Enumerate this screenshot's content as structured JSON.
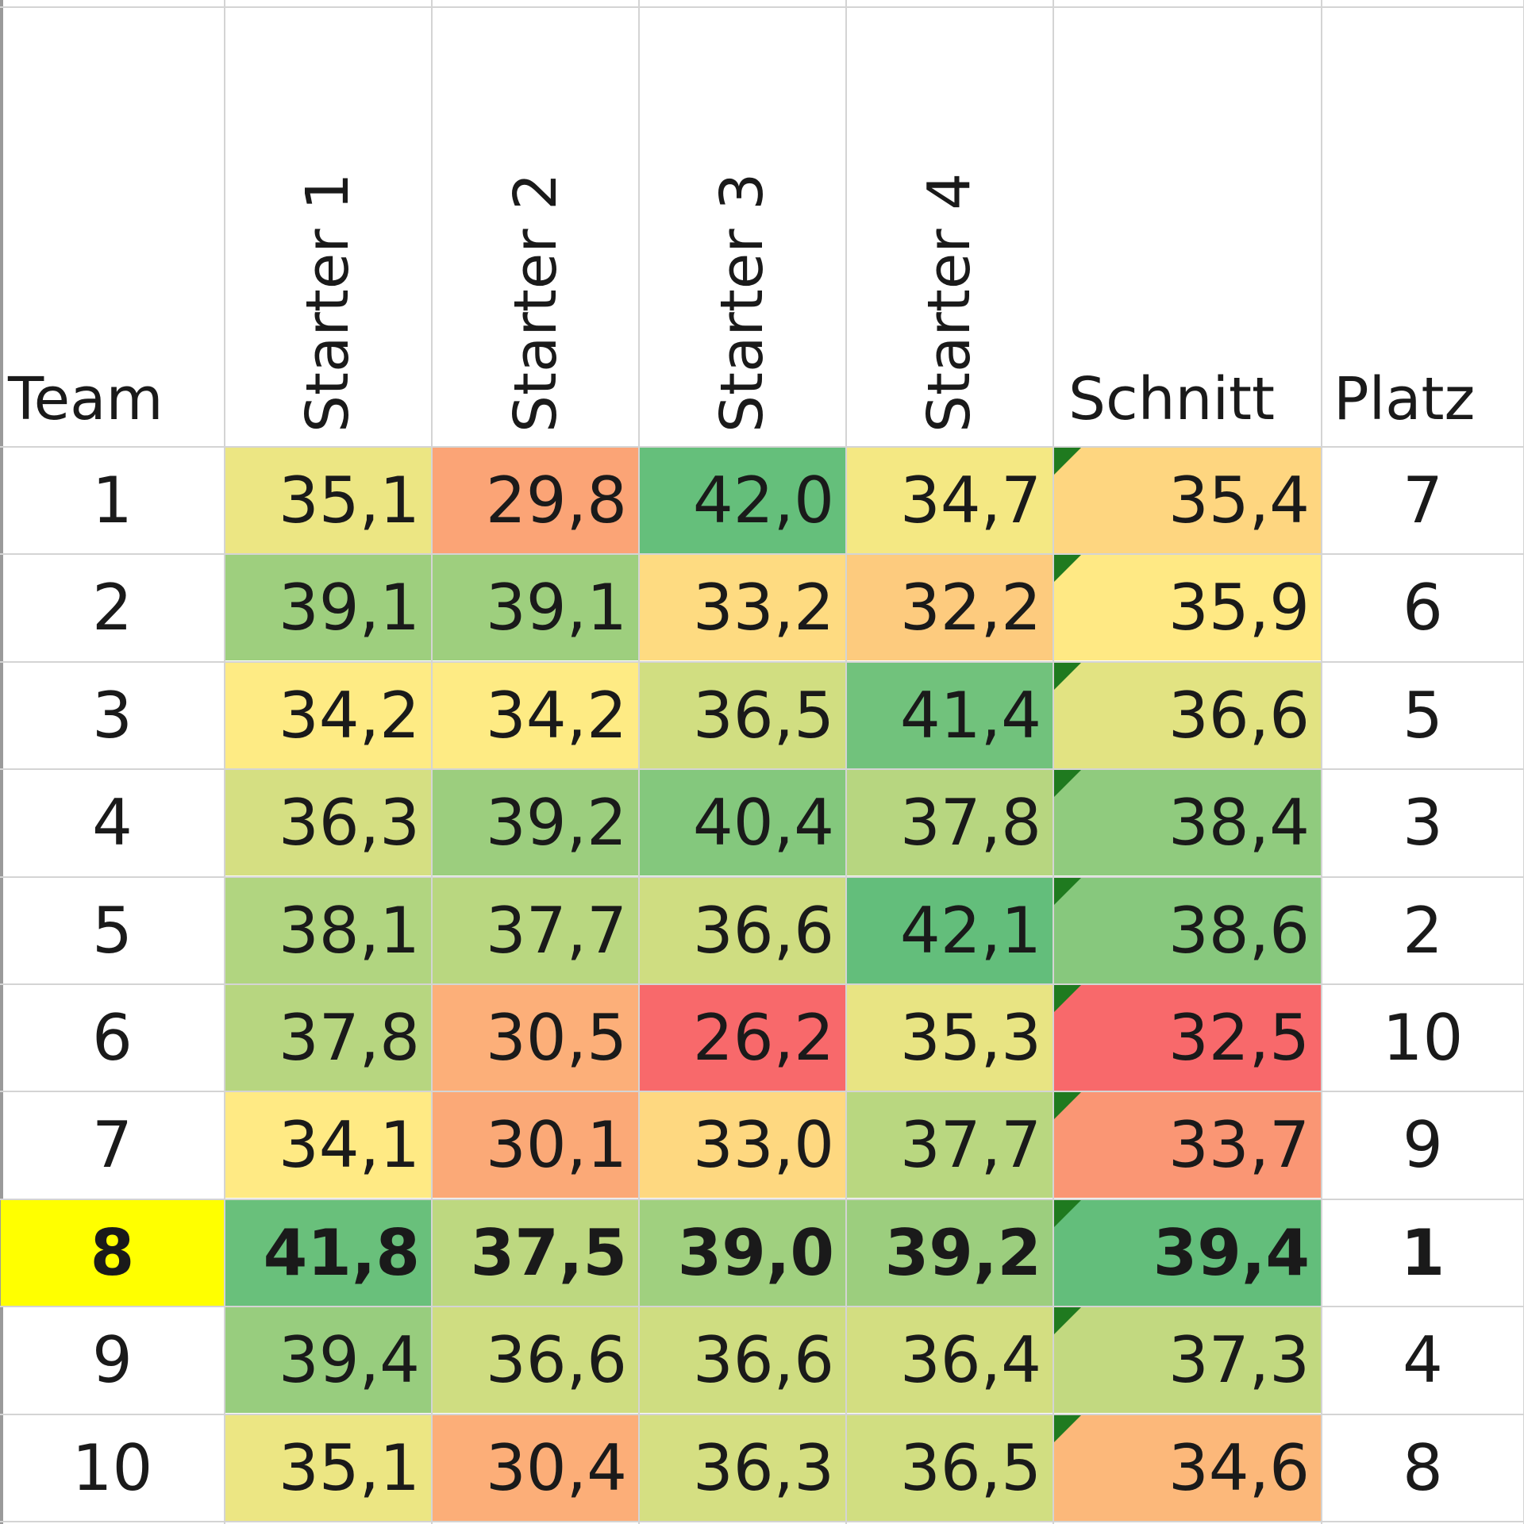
{
  "headers": {
    "team": "Team",
    "starter1": "Starter 1",
    "starter2": "Starter 2",
    "starter3": "Starter 3",
    "starter4": "Starter 4",
    "schnitt": "Schnitt",
    "platz": "Platz"
  },
  "rows": [
    {
      "team": "1",
      "s1": "35,1",
      "s2": "29,8",
      "s3": "42,0",
      "s4": "34,7",
      "schnitt": "35,4",
      "platz": "7"
    },
    {
      "team": "2",
      "s1": "39,1",
      "s2": "39,1",
      "s3": "33,2",
      "s4": "32,2",
      "schnitt": "35,9",
      "platz": "6"
    },
    {
      "team": "3",
      "s1": "34,2",
      "s2": "34,2",
      "s3": "36,5",
      "s4": "41,4",
      "schnitt": "36,6",
      "platz": "5"
    },
    {
      "team": "4",
      "s1": "36,3",
      "s2": "39,2",
      "s3": "40,4",
      "s4": "37,8",
      "schnitt": "38,4",
      "platz": "3"
    },
    {
      "team": "5",
      "s1": "38,1",
      "s2": "37,7",
      "s3": "36,6",
      "s4": "42,1",
      "schnitt": "38,6",
      "platz": "2"
    },
    {
      "team": "6",
      "s1": "37,8",
      "s2": "30,5",
      "s3": "26,2",
      "s4": "35,3",
      "schnitt": "32,5",
      "platz": "10"
    },
    {
      "team": "7",
      "s1": "34,1",
      "s2": "30,1",
      "s3": "33,0",
      "s4": "37,7",
      "schnitt": "33,7",
      "platz": "9"
    },
    {
      "team": "8",
      "s1": "41,8",
      "s2": "37,5",
      "s3": "39,0",
      "s4": "39,2",
      "schnitt": "39,4",
      "platz": "1"
    },
    {
      "team": "9",
      "s1": "39,4",
      "s2": "36,6",
      "s3": "36,6",
      "s4": "36,4",
      "schnitt": "37,3",
      "platz": "4"
    },
    {
      "team": "10",
      "s1": "35,1",
      "s2": "30,4",
      "s3": "36,3",
      "s4": "36,5",
      "schnitt": "34,6",
      "platz": "8"
    }
  ],
  "highlight": {
    "row_team": "8",
    "fill": "#ffff00"
  },
  "colors": {
    "scale_low": "#f8696b",
    "scale_mid": "#ffeb84",
    "scale_high": "#63be7b",
    "gridline": "#d4d4d4",
    "error_marker": "#1f7a1f"
  }
}
